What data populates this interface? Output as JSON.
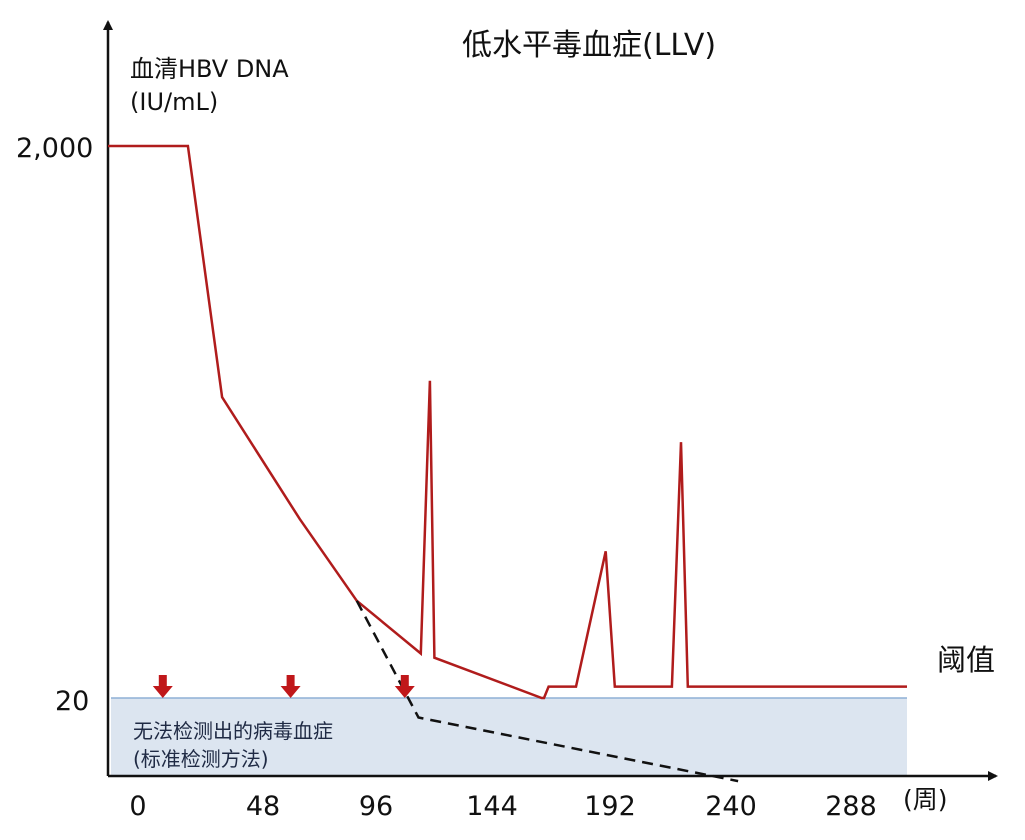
{
  "chart_data": {
    "type": "line",
    "title": "低水平毒血症(LLV)",
    "ylabel_line1": "血清HBV DNA",
    "ylabel_line2": "(IU/mL)",
    "x_unit": "(周)",
    "x_ticks": [
      "0",
      "48",
      "96",
      "144",
      "192",
      "240",
      "288"
    ],
    "y_ticks": [
      {
        "label": "2,000",
        "value": 2000
      },
      {
        "label": "20",
        "value": 20
      }
    ],
    "threshold_label": "阈值",
    "threshold_value": 20,
    "band_label_line1": "无法检测出的病毒血症",
    "band_label_line2": "(标准检测方法)",
    "colors": {
      "main_line": "#b01c1c",
      "dashed_line": "#111111",
      "band_fill": "#dce5f0",
      "threshold_line": "#8fb0d6",
      "arrow": "#c0171a",
      "axis": "#111111"
    },
    "series": [
      {
        "style": "solid",
        "x": [
          -12,
          23,
          38,
          72,
          97,
          125,
          129,
          131,
          178,
          179,
          181,
          193,
          206,
          210,
          213,
          235,
          239,
          242,
          297,
          338
        ],
        "y": [
          2000,
          2000,
          246,
          89,
          45,
          29,
          282,
          28,
          20,
          20,
          22,
          22,
          68,
          22,
          22,
          22,
          169,
          22,
          22,
          22
        ]
      },
      {
        "style": "dashed",
        "x": [
          97,
          124,
          264
        ],
        "y": [
          45,
          17,
          10
        ]
      }
    ],
    "arrows_x": [
      12,
      68,
      118
    ],
    "xlim": [
      -12,
      338
    ],
    "ylim_log": [
      8,
      5000
    ]
  }
}
